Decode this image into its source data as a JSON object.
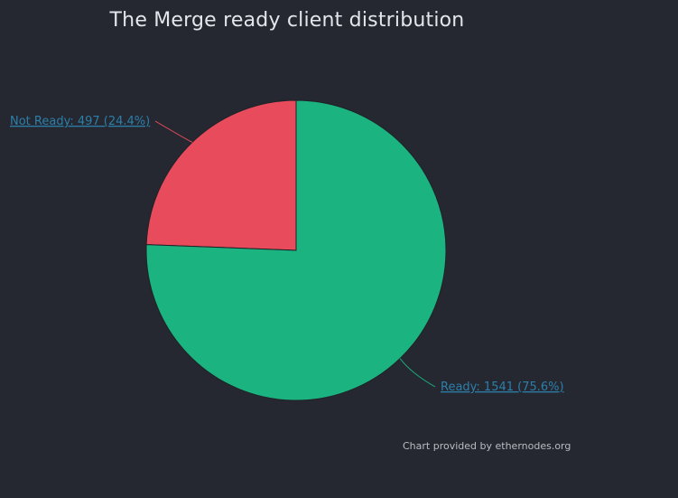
{
  "chart_data": {
    "type": "pie",
    "title": "The Merge ready client distribution",
    "slices": [
      {
        "name": "Not Ready",
        "value": 497,
        "percent": 24.4,
        "label": "Not Ready: 497 (24.4%)",
        "color": "#e84b5c"
      },
      {
        "name": "Ready",
        "value": 1541,
        "percent": 75.6,
        "label": "Ready: 1541 (75.6%)",
        "color": "#1bb37f"
      }
    ],
    "label_color": "#2c7faa",
    "legend": "none",
    "credit": "Chart provided by ethernodes.org"
  }
}
